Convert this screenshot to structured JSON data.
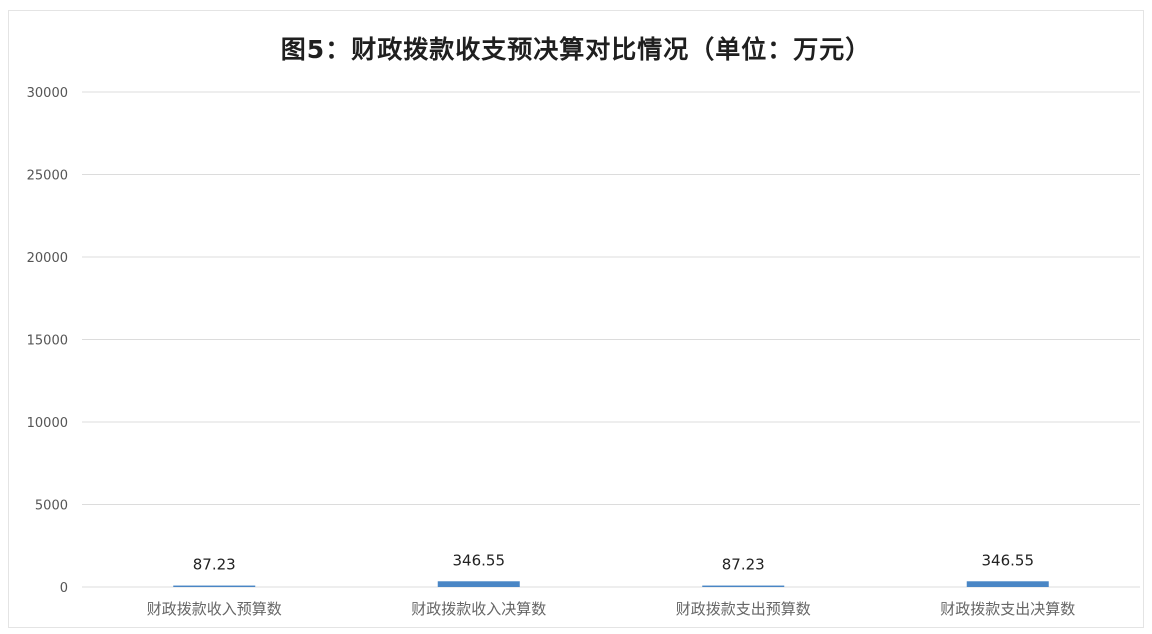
{
  "chart_data": {
    "type": "bar",
    "title": "图5：财政拨款收支预决算对比情况（单位：万元）",
    "categories": [
      "财政拨款收入预算数",
      "财政拨款收入决算数",
      "财政拨款支出预算数",
      "财政拨款支出决算数"
    ],
    "values": [
      87.23,
      346.55,
      87.23,
      346.55
    ],
    "data_labels": [
      "87.23",
      "346.55",
      "87.23",
      "346.55"
    ],
    "y_ticks": [
      0,
      5000,
      10000,
      15000,
      20000,
      25000,
      30000
    ],
    "ylim": [
      0,
      30000
    ],
    "grid": true,
    "legend": "none",
    "bar_color": "#4a86c5",
    "grid_color": "#dcdcdc",
    "label_color": "#555555"
  }
}
